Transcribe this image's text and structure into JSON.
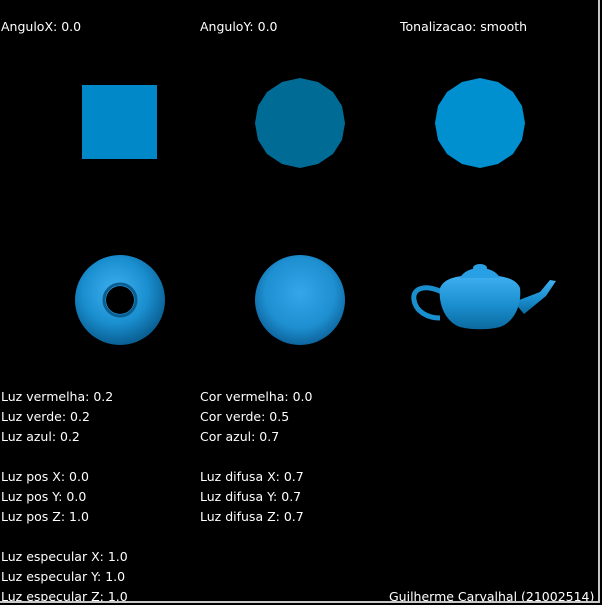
{
  "window": {
    "header": {
      "angle_x": "AnguloX: 0.0",
      "angle_y": "AnguloY: 0.0",
      "shading": "Tonalizacao: smooth"
    },
    "objects": [
      {
        "name": "square",
        "color": "#0088c8"
      },
      {
        "name": "polygon-sphere",
        "color": "#006b94"
      },
      {
        "name": "disk",
        "color": "#0090d0"
      },
      {
        "name": "torus",
        "color": "#1a8fd0"
      },
      {
        "name": "sphere",
        "color": "#1e8fd0"
      },
      {
        "name": "teapot",
        "color": "#1a8fd0"
      }
    ],
    "light_color": [
      "Luz vermelha: 0.2",
      "Luz verde: 0.2",
      "Luz azul: 0.2"
    ],
    "object_color": [
      "Cor vermelha: 0.0",
      "Cor verde: 0.5",
      "Cor azul: 0.7"
    ],
    "light_pos": [
      "Luz pos X: 0.0",
      "Luz pos Y: 0.0",
      "Luz pos Z: 1.0"
    ],
    "diffuse": [
      "Luz difusa X: 0.7",
      "Luz difusa Y: 0.7",
      "Luz difusa Z: 0.7"
    ],
    "specular": [
      "Luz especular X: 1.0",
      "Luz especular Y: 1.0",
      "Luz especular Z: 1.0"
    ],
    "author": "Guilherme Carvalhal (21002514)"
  }
}
